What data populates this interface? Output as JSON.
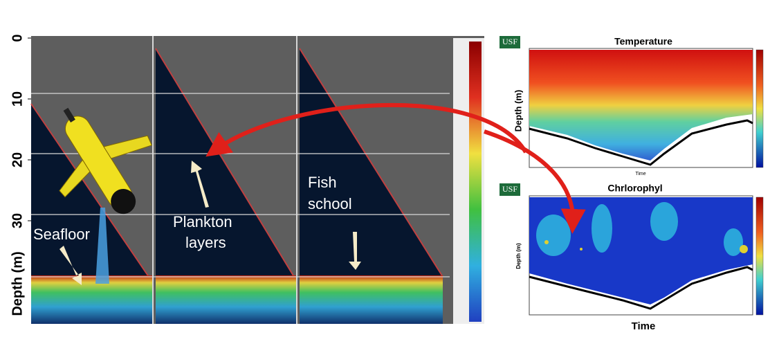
{
  "echogram": {
    "depth_label": "Depth (m)",
    "depth_ticks": [
      0,
      10,
      20,
      30
    ],
    "annotations": {
      "seafloor": [
        "Seafloor"
      ],
      "plankton": [
        "Plankton",
        "layers"
      ],
      "fish": [
        "Fish",
        "school"
      ]
    }
  },
  "panels": [
    {
      "logo": "USF",
      "title": "Temperature",
      "ylabel": "Depth (m)",
      "xlabel": "Time"
    },
    {
      "logo": "USF",
      "title": "Chrlorophyl",
      "ylabel": "Depth (m)",
      "xlabel": "Time"
    }
  ]
}
